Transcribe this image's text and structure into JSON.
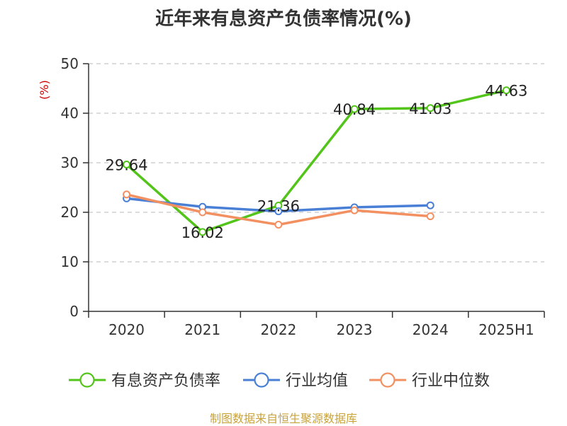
{
  "chart_data": {
    "type": "line",
    "title": "近年来有息资产负债率情况(%)",
    "ylabel": "(%)",
    "xlabel": "",
    "ylim": [
      0,
      50
    ],
    "yticks": [
      0,
      10,
      20,
      30,
      40,
      50
    ],
    "categories": [
      "2020",
      "2021",
      "2022",
      "2023",
      "2024",
      "2025H1"
    ],
    "grid": true,
    "legend_position": "bottom",
    "series": [
      {
        "name": "有息资产负债率",
        "color": "#52c41a",
        "values": [
          29.64,
          16.02,
          21.36,
          40.84,
          41.03,
          44.63
        ],
        "labels": [
          "29.64",
          "16.02",
          "21.36",
          "40.84",
          "41.03",
          "44.63"
        ]
      },
      {
        "name": "行业均值",
        "color": "#4a7fd6",
        "values": [
          22.8,
          21.1,
          20.2,
          21.0,
          21.4,
          null
        ]
      },
      {
        "name": "行业中位数",
        "color": "#f39061",
        "values": [
          23.6,
          20.0,
          17.5,
          20.4,
          19.2,
          null
        ]
      }
    ]
  },
  "footer": "制图数据来自恒生聚源数据库"
}
